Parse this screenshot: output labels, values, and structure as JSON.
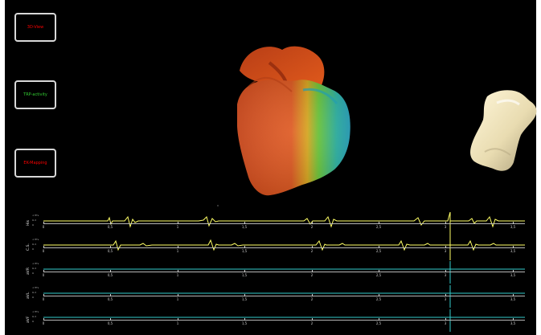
{
  "menu": {
    "buttons": [
      {
        "label": "3D-View",
        "color": "#ff0000"
      },
      {
        "label": "TRP-activity",
        "color": "#33cc33"
      },
      {
        "label": "EK-Mapping",
        "color": "#ff0000"
      }
    ]
  },
  "ecg": {
    "tracks": [
      {
        "label": "His",
        "scale_top": "1 mV",
        "scale_mid": "0.5",
        "scale_bottom": "0",
        "color": "#ffff66",
        "ticks": [
          "0",
          "0,5",
          "1",
          "1,5",
          "2",
          "2,5",
          "3",
          "3,5"
        ]
      },
      {
        "label": "C.S.",
        "scale_top": "1 mV",
        "scale_mid": "0.5",
        "scale_bottom": "0",
        "color": "#ffff66",
        "ticks": [
          "0",
          "0,5",
          "1",
          "1,5",
          "2",
          "2,5",
          "3",
          "3,5"
        ]
      },
      {
        "label": "aVR",
        "scale_top": "1 mV",
        "scale_mid": "0.5",
        "scale_bottom": "0",
        "color": "#33cccc",
        "ticks": [
          "0",
          "0,5",
          "1",
          "1,5",
          "2",
          "2,5",
          "3",
          "3,5"
        ]
      },
      {
        "label": "aVL",
        "scale_top": "1 mV",
        "scale_mid": "0.5",
        "scale_bottom": "0",
        "color": "#33cccc",
        "ticks": [
          "0",
          "0,5",
          "1",
          "1,5",
          "2",
          "2,5",
          "3",
          "3,5"
        ]
      },
      {
        "label": "aVF",
        "scale_top": "1 mV",
        "scale_mid": "0.5",
        "scale_bottom": "0",
        "color": "#33cccc",
        "ticks": [
          "0",
          "0,5",
          "1",
          "1,5",
          "2",
          "2,5",
          "3",
          "3,5"
        ]
      }
    ]
  }
}
